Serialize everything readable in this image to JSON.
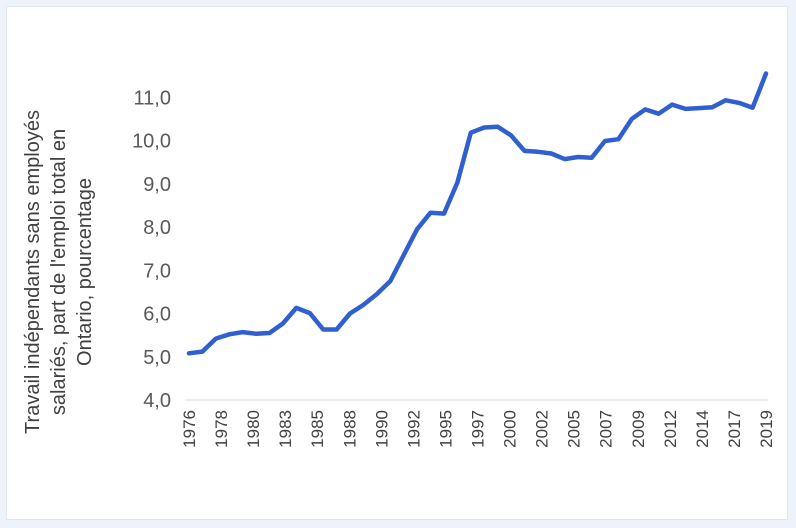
{
  "chart_data": {
    "type": "line",
    "title": "",
    "ylabel_lines": [
      "Travail indépendants sans employés",
      "salariés, part de l'emploi total en",
      "Ontario, pourcentage"
    ],
    "xlabel": "",
    "ylim": [
      4.0,
      11.7
    ],
    "yticks": [
      "4,0",
      "5,0",
      "6,0",
      "7,0",
      "8,0",
      "9,0",
      "10,0",
      "11,0"
    ],
    "xtick_labels": [
      "1976",
      "1978",
      "1980",
      "1983",
      "1985",
      "1988",
      "1990",
      "1992",
      "1995",
      "1997",
      "2000",
      "2002",
      "2005",
      "2007",
      "2009",
      "2012",
      "2014",
      "2017",
      "2019"
    ],
    "grid": false,
    "legend": "none",
    "series": [
      {
        "color": "#3060cf",
        "x": [
          1976,
          1977,
          1978,
          1979,
          1980,
          1981,
          1982,
          1983,
          1984,
          1985,
          1986,
          1987,
          1988,
          1989,
          1990,
          1991,
          1992,
          1993,
          1994,
          1995,
          1996,
          1997,
          1998,
          1999,
          2000,
          2001,
          2002,
          2003,
          2004,
          2005,
          2006,
          2007,
          2008,
          2009,
          2010,
          2011,
          2012,
          2013,
          2014,
          2015,
          2016,
          2017,
          2018,
          2019
        ],
        "values": [
          5.08,
          5.12,
          5.42,
          5.52,
          5.57,
          5.53,
          5.55,
          5.77,
          6.13,
          6.01,
          5.63,
          5.63,
          6.0,
          6.2,
          6.45,
          6.75,
          7.35,
          7.95,
          8.33,
          8.31,
          9.03,
          10.18,
          10.3,
          10.32,
          10.12,
          9.76,
          9.74,
          9.7,
          9.57,
          9.62,
          9.6,
          9.99,
          10.03,
          10.5,
          10.72,
          10.62,
          10.83,
          10.73,
          10.75,
          10.77,
          10.93,
          10.87,
          10.76,
          11.55
        ]
      }
    ]
  }
}
